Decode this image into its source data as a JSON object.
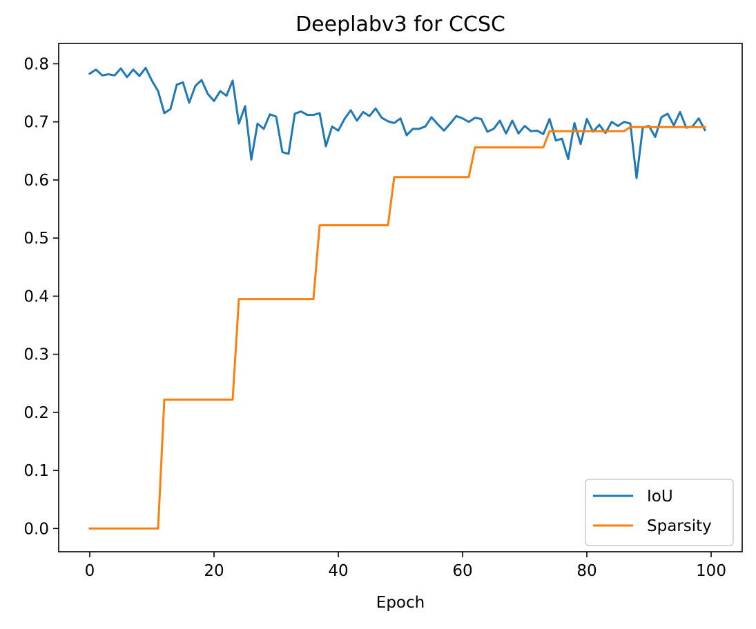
{
  "chart_data": {
    "type": "line",
    "title": "Deeplabv3 for CCSC",
    "xlabel": "Epoch",
    "ylabel": "",
    "xlim": [
      -5,
      105
    ],
    "ylim": [
      -0.04,
      0.835
    ],
    "x_ticks": [
      0,
      20,
      40,
      60,
      80,
      100
    ],
    "y_ticks": [
      0.0,
      0.1,
      0.2,
      0.3,
      0.4,
      0.5,
      0.6,
      0.7,
      0.8
    ],
    "x_tick_labels": [
      "0",
      "20",
      "40",
      "60",
      "80",
      "100"
    ],
    "y_tick_labels": [
      "0.0",
      "0.1",
      "0.2",
      "0.3",
      "0.4",
      "0.5",
      "0.6",
      "0.7",
      "0.8"
    ],
    "grid": false,
    "legend_position": "lower-right",
    "series": [
      {
        "name": "IoU",
        "color": "#1f77b4",
        "values": [
          0.783,
          0.79,
          0.78,
          0.782,
          0.78,
          0.792,
          0.777,
          0.79,
          0.779,
          0.793,
          0.771,
          0.753,
          0.715,
          0.722,
          0.764,
          0.768,
          0.733,
          0.762,
          0.772,
          0.748,
          0.736,
          0.753,
          0.745,
          0.771,
          0.697,
          0.727,
          0.635,
          0.697,
          0.688,
          0.713,
          0.709,
          0.648,
          0.645,
          0.714,
          0.718,
          0.712,
          0.712,
          0.715,
          0.658,
          0.692,
          0.685,
          0.705,
          0.72,
          0.702,
          0.717,
          0.71,
          0.723,
          0.707,
          0.701,
          0.698,
          0.706,
          0.677,
          0.688,
          0.688,
          0.692,
          0.708,
          0.696,
          0.685,
          0.697,
          0.71,
          0.706,
          0.7,
          0.707,
          0.705,
          0.683,
          0.688,
          0.702,
          0.68,
          0.702,
          0.68,
          0.693,
          0.684,
          0.685,
          0.679,
          0.705,
          0.668,
          0.671,
          0.636,
          0.698,
          0.662,
          0.705,
          0.683,
          0.695,
          0.681,
          0.7,
          0.693,
          0.7,
          0.697,
          0.603,
          0.69,
          0.693,
          0.674,
          0.708,
          0.714,
          0.694,
          0.717,
          0.69,
          0.692,
          0.706,
          0.686
        ]
      },
      {
        "name": "Sparsity",
        "color": "#ff7f0e",
        "values": [
          0,
          0,
          0,
          0,
          0,
          0,
          0,
          0,
          0,
          0,
          0,
          0,
          0.222,
          0.222,
          0.222,
          0.222,
          0.222,
          0.222,
          0.222,
          0.222,
          0.222,
          0.222,
          0.222,
          0.222,
          0.395,
          0.395,
          0.395,
          0.395,
          0.395,
          0.395,
          0.395,
          0.395,
          0.395,
          0.395,
          0.395,
          0.395,
          0.395,
          0.522,
          0.522,
          0.522,
          0.522,
          0.522,
          0.522,
          0.522,
          0.522,
          0.522,
          0.522,
          0.522,
          0.522,
          0.605,
          0.605,
          0.605,
          0.605,
          0.605,
          0.605,
          0.605,
          0.605,
          0.605,
          0.605,
          0.605,
          0.605,
          0.605,
          0.656,
          0.656,
          0.656,
          0.656,
          0.656,
          0.656,
          0.656,
          0.656,
          0.656,
          0.656,
          0.656,
          0.656,
          0.684,
          0.684,
          0.684,
          0.684,
          0.684,
          0.684,
          0.684,
          0.684,
          0.684,
          0.684,
          0.684,
          0.684,
          0.684,
          0.691,
          0.691,
          0.691,
          0.691,
          0.691,
          0.691,
          0.691,
          0.691,
          0.691,
          0.691,
          0.691,
          0.691,
          0.691
        ]
      }
    ]
  }
}
